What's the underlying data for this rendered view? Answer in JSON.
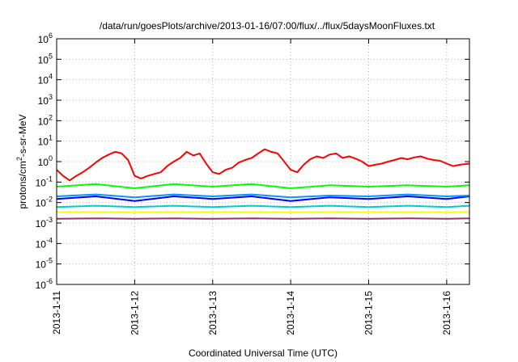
{
  "chart_data": {
    "type": "line",
    "title": "/data/run/goesPlots/archive/2013-01-16/07:00/flux/../flux/5daysMoonFluxes.txt",
    "xlabel": "Coordinated Universal Time (UTC)",
    "ylabel": {
      "main": "protons/cm",
      "sup": "2",
      "rest": "-s-sr-MeV"
    },
    "y_scale": "log",
    "ylim": [
      1e-06,
      1000000.0
    ],
    "y_tick_labels": [
      {
        "base": "10",
        "exp": "-6"
      },
      {
        "base": "10",
        "exp": "-5"
      },
      {
        "base": "10",
        "exp": "-4"
      },
      {
        "base": "10",
        "exp": "-3"
      },
      {
        "base": "10",
        "exp": "-2"
      },
      {
        "base": "10",
        "exp": "-1"
      },
      {
        "base": "10",
        "exp": "0"
      },
      {
        "base": "10",
        "exp": "1"
      },
      {
        "base": "10",
        "exp": "2"
      },
      {
        "base": "10",
        "exp": "3"
      },
      {
        "base": "10",
        "exp": "4"
      },
      {
        "base": "10",
        "exp": "5"
      },
      {
        "base": "10",
        "exp": "6"
      }
    ],
    "x_tick_labels": [
      "2013-1-11",
      "2013-1-12",
      "2013-1-13",
      "2013-1-14",
      "2013-1-15",
      "2013-1-16"
    ],
    "xlim": [
      "2013-01-11 00:00",
      "2013-01-16 07:00"
    ],
    "grid": true,
    "series": [
      {
        "color": "#ff0000",
        "values": [
          [
            "2013-01-11 00:00",
            0.4
          ],
          [
            "2013-01-11 02:00",
            0.2
          ],
          [
            "2013-01-11 04:00",
            0.12
          ],
          [
            "2013-01-11 06:00",
            0.2
          ],
          [
            "2013-01-11 08:00",
            0.3
          ],
          [
            "2013-01-11 10:00",
            0.5
          ],
          [
            "2013-01-11 12:00",
            0.9
          ],
          [
            "2013-01-11 14:00",
            1.5
          ],
          [
            "2013-01-11 16:00",
            2.2
          ],
          [
            "2013-01-11 18:00",
            3.0
          ],
          [
            "2013-01-11 20:00",
            2.5
          ],
          [
            "2013-01-11 22:00",
            1.2
          ],
          [
            "2013-01-12 00:00",
            0.2
          ],
          [
            "2013-01-12 02:00",
            0.15
          ],
          [
            "2013-01-12 04:00",
            0.2
          ],
          [
            "2013-01-12 06:00",
            0.25
          ],
          [
            "2013-01-12 08:00",
            0.3
          ],
          [
            "2013-01-12 10:00",
            0.6
          ],
          [
            "2013-01-12 12:00",
            1.0
          ],
          [
            "2013-01-12 14:00",
            1.5
          ],
          [
            "2013-01-12 16:00",
            3.0
          ],
          [
            "2013-01-12 18:00",
            2.0
          ],
          [
            "2013-01-12 20:00",
            2.5
          ],
          [
            "2013-01-12 22:00",
            0.8
          ],
          [
            "2013-01-13 00:00",
            0.3
          ],
          [
            "2013-01-13 02:00",
            0.25
          ],
          [
            "2013-01-13 04:00",
            0.4
          ],
          [
            "2013-01-13 06:00",
            0.5
          ],
          [
            "2013-01-13 08:00",
            0.9
          ],
          [
            "2013-01-13 10:00",
            1.2
          ],
          [
            "2013-01-13 12:00",
            1.5
          ],
          [
            "2013-01-13 14:00",
            2.5
          ],
          [
            "2013-01-13 16:00",
            4.0
          ],
          [
            "2013-01-13 18:00",
            3.0
          ],
          [
            "2013-01-13 20:00",
            2.5
          ],
          [
            "2013-01-13 22:00",
            1.0
          ],
          [
            "2013-01-14 00:00",
            0.4
          ],
          [
            "2013-01-14 02:00",
            0.3
          ],
          [
            "2013-01-14 04:00",
            0.7
          ],
          [
            "2013-01-14 06:00",
            1.3
          ],
          [
            "2013-01-14 08:00",
            1.8
          ],
          [
            "2013-01-14 10:00",
            1.5
          ],
          [
            "2013-01-14 12:00",
            2.2
          ],
          [
            "2013-01-14 14:00",
            2.5
          ],
          [
            "2013-01-14 16:00",
            1.5
          ],
          [
            "2013-01-14 18:00",
            1.8
          ],
          [
            "2013-01-14 20:00",
            1.4
          ],
          [
            "2013-01-14 22:00",
            1.0
          ],
          [
            "2013-01-15 00:00",
            0.6
          ],
          [
            "2013-01-15 02:00",
            0.7
          ],
          [
            "2013-01-15 04:00",
            0.8
          ],
          [
            "2013-01-15 06:00",
            1.0
          ],
          [
            "2013-01-15 08:00",
            1.2
          ],
          [
            "2013-01-15 10:00",
            1.5
          ],
          [
            "2013-01-15 12:00",
            1.3
          ],
          [
            "2013-01-15 14:00",
            1.6
          ],
          [
            "2013-01-15 16:00",
            1.8
          ],
          [
            "2013-01-15 18:00",
            1.4
          ],
          [
            "2013-01-15 20:00",
            1.2
          ],
          [
            "2013-01-15 22:00",
            1.1
          ],
          [
            "2013-01-16 00:00",
            0.8
          ],
          [
            "2013-01-16 02:00",
            0.6
          ],
          [
            "2013-01-16 04:00",
            0.7
          ],
          [
            "2013-01-16 07:00",
            0.8
          ]
        ]
      },
      {
        "color": "#00ff00",
        "values": [
          [
            "2013-01-11 00:00",
            0.06
          ],
          [
            "2013-01-11 12:00",
            0.08
          ],
          [
            "2013-01-12 00:00",
            0.05
          ],
          [
            "2013-01-12 12:00",
            0.08
          ],
          [
            "2013-01-13 00:00",
            0.06
          ],
          [
            "2013-01-13 12:00",
            0.08
          ],
          [
            "2013-01-14 00:00",
            0.05
          ],
          [
            "2013-01-14 12:00",
            0.07
          ],
          [
            "2013-01-15 00:00",
            0.06
          ],
          [
            "2013-01-15 12:00",
            0.07
          ],
          [
            "2013-01-16 00:00",
            0.06
          ],
          [
            "2013-01-16 07:00",
            0.07
          ]
        ]
      },
      {
        "color": "#0000ff",
        "values": [
          [
            "2013-01-11 00:00",
            0.015
          ],
          [
            "2013-01-11 12:00",
            0.02
          ],
          [
            "2013-01-12 00:00",
            0.012
          ],
          [
            "2013-01-12 12:00",
            0.02
          ],
          [
            "2013-01-13 00:00",
            0.015
          ],
          [
            "2013-01-13 12:00",
            0.02
          ],
          [
            "2013-01-14 00:00",
            0.012
          ],
          [
            "2013-01-14 12:00",
            0.018
          ],
          [
            "2013-01-15 00:00",
            0.015
          ],
          [
            "2013-01-15 12:00",
            0.02
          ],
          [
            "2013-01-16 00:00",
            0.015
          ],
          [
            "2013-01-16 07:00",
            0.02
          ]
        ]
      },
      {
        "color": "#0099ff",
        "values": [
          [
            "2013-01-11 00:00",
            0.02
          ],
          [
            "2013-01-11 12:00",
            0.025
          ],
          [
            "2013-01-12 00:00",
            0.018
          ],
          [
            "2013-01-12 12:00",
            0.025
          ],
          [
            "2013-01-13 00:00",
            0.02
          ],
          [
            "2013-01-13 12:00",
            0.025
          ],
          [
            "2013-01-14 00:00",
            0.018
          ],
          [
            "2013-01-14 12:00",
            0.022
          ],
          [
            "2013-01-15 00:00",
            0.02
          ],
          [
            "2013-01-15 12:00",
            0.025
          ],
          [
            "2013-01-16 00:00",
            0.02
          ],
          [
            "2013-01-16 07:00",
            0.022
          ]
        ]
      },
      {
        "color": "#00cccc",
        "values": [
          [
            "2013-01-11 00:00",
            0.006
          ],
          [
            "2013-01-11 12:00",
            0.007
          ],
          [
            "2013-01-12 00:00",
            0.006
          ],
          [
            "2013-01-12 12:00",
            0.007
          ],
          [
            "2013-01-13 00:00",
            0.006
          ],
          [
            "2013-01-13 12:00",
            0.007
          ],
          [
            "2013-01-14 00:00",
            0.006
          ],
          [
            "2013-01-14 12:00",
            0.007
          ],
          [
            "2013-01-15 00:00",
            0.006
          ],
          [
            "2013-01-15 12:00",
            0.007
          ],
          [
            "2013-01-16 00:00",
            0.006
          ],
          [
            "2013-01-16 07:00",
            0.007
          ]
        ]
      },
      {
        "color": "#ffff00",
        "values": [
          [
            "2013-01-11 00:00",
            0.0035
          ],
          [
            "2013-01-12 00:00",
            0.0034
          ],
          [
            "2013-01-13 00:00",
            0.0035
          ],
          [
            "2013-01-14 00:00",
            0.0034
          ],
          [
            "2013-01-15 00:00",
            0.0035
          ],
          [
            "2013-01-16 00:00",
            0.0034
          ],
          [
            "2013-01-16 07:00",
            0.0035
          ]
        ]
      },
      {
        "color": "#993366",
        "values": [
          [
            "2013-01-11 00:00",
            0.0016
          ],
          [
            "2013-01-11 12:00",
            0.0017
          ],
          [
            "2013-01-12 00:00",
            0.0016
          ],
          [
            "2013-01-12 12:00",
            0.0017
          ],
          [
            "2013-01-13 00:00",
            0.0016
          ],
          [
            "2013-01-13 12:00",
            0.0017
          ],
          [
            "2013-01-14 00:00",
            0.0016
          ],
          [
            "2013-01-14 12:00",
            0.0017
          ],
          [
            "2013-01-15 00:00",
            0.0016
          ],
          [
            "2013-01-15 12:00",
            0.0017
          ],
          [
            "2013-01-16 00:00",
            0.0016
          ],
          [
            "2013-01-16 07:00",
            0.0017
          ]
        ]
      }
    ]
  }
}
